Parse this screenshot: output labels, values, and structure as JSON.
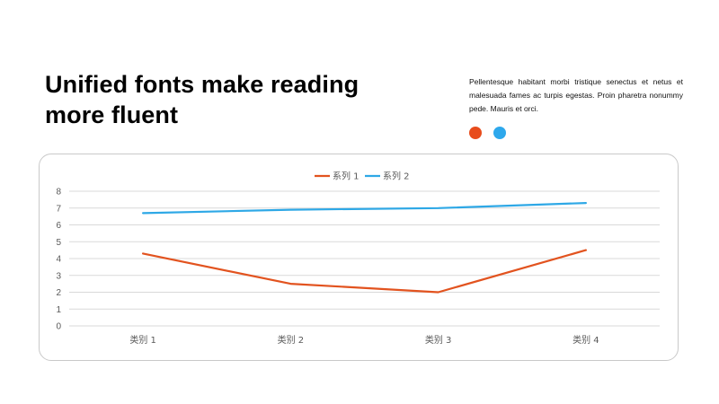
{
  "heading": {
    "line1": "Unified fonts make reading",
    "line2": "more fluent"
  },
  "description": "Pellentesque habitant morbi tristique senectus et netus et malesuada fames ac turpis egestas. Proin pharetra nonummy pede. Mauris et orci.",
  "decor_dots": [
    {
      "name": "orange-dot",
      "color": "#E84C1C"
    },
    {
      "name": "blue-dot",
      "color": "#2EA8EC"
    }
  ],
  "chart_data": {
    "type": "line",
    "categories": [
      "类别 1",
      "类别 2",
      "类别 3",
      "类别 4"
    ],
    "series": [
      {
        "name": "系列 1",
        "color": "#E2531F",
        "values": [
          4.3,
          2.5,
          2.0,
          4.5
        ]
      },
      {
        "name": "系列 2",
        "color": "#2EA8E6",
        "values": [
          6.7,
          6.9,
          7.0,
          7.3
        ]
      }
    ],
    "ylim": [
      0,
      8
    ],
    "yticks": [
      "0",
      "1",
      "2",
      "3",
      "4",
      "5",
      "6",
      "7",
      "8"
    ],
    "grid": true,
    "legend": "top-center",
    "title": "",
    "xlabel": "",
    "ylabel": ""
  }
}
